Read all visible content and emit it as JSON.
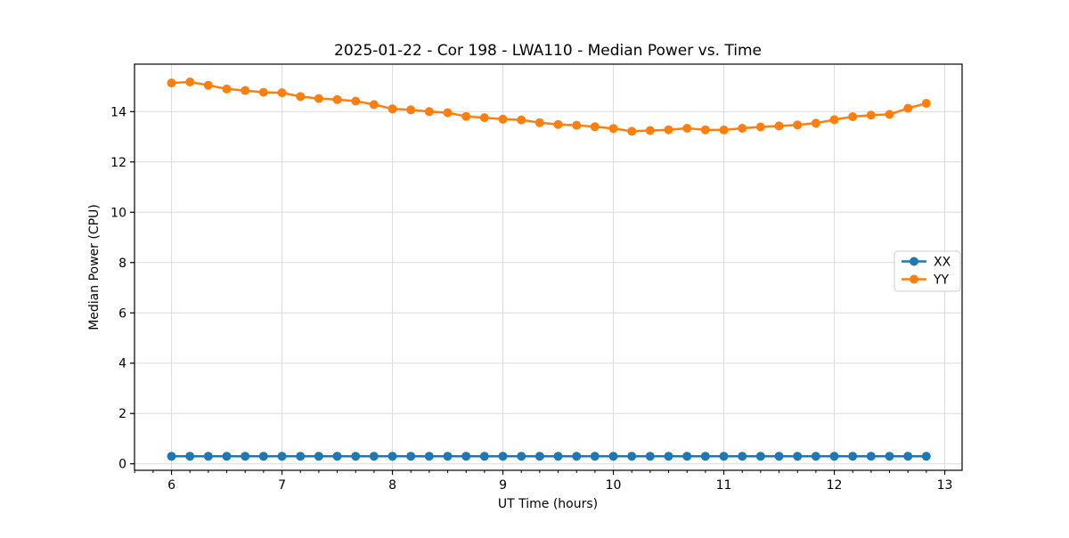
{
  "figure": {
    "background": "#ffffff"
  },
  "chart_data": {
    "type": "line",
    "title": "2025-01-22 - Cor 198 - LWA110 - Median Power vs. Time",
    "xlabel": "UT Time (hours)",
    "ylabel": "Median Power (CPU)",
    "x": [
      6.0,
      6.167,
      6.333,
      6.5,
      6.667,
      6.833,
      7.0,
      7.167,
      7.333,
      7.5,
      7.667,
      7.833,
      8.0,
      8.167,
      8.333,
      8.5,
      8.667,
      8.833,
      9.0,
      9.167,
      9.333,
      9.5,
      9.667,
      9.833,
      10.0,
      10.167,
      10.333,
      10.5,
      10.667,
      10.833,
      11.0,
      11.167,
      11.333,
      11.5,
      11.667,
      11.833,
      12.0,
      12.167,
      12.333,
      12.5,
      12.667,
      12.833
    ],
    "series": [
      {
        "name": "XX",
        "color": "#1f77b4",
        "values": [
          0.3,
          0.3,
          0.3,
          0.3,
          0.3,
          0.3,
          0.3,
          0.3,
          0.3,
          0.3,
          0.3,
          0.3,
          0.3,
          0.3,
          0.3,
          0.3,
          0.3,
          0.3,
          0.3,
          0.3,
          0.3,
          0.3,
          0.3,
          0.3,
          0.3,
          0.3,
          0.3,
          0.3,
          0.3,
          0.3,
          0.3,
          0.3,
          0.3,
          0.3,
          0.3,
          0.3,
          0.3,
          0.3,
          0.3,
          0.3,
          0.3,
          0.3
        ]
      },
      {
        "name": "YY",
        "color": "#ff7f0e",
        "values": [
          15.14,
          15.18,
          15.05,
          14.9,
          14.84,
          14.77,
          14.75,
          14.6,
          14.52,
          14.48,
          14.42,
          14.28,
          14.11,
          14.07,
          14.0,
          13.96,
          13.81,
          13.76,
          13.7,
          13.67,
          13.56,
          13.49,
          13.46,
          13.4,
          13.33,
          13.22,
          13.25,
          13.28,
          13.34,
          13.28,
          13.27,
          13.34,
          13.39,
          13.43,
          13.47,
          13.54,
          13.68,
          13.8,
          13.86,
          13.89,
          14.13,
          14.33
        ]
      }
    ],
    "xlim": [
      5.665,
      13.157
    ],
    "ylim": [
      -0.258,
      15.888
    ],
    "xticks": [
      6,
      7,
      8,
      9,
      10,
      11,
      12,
      13
    ],
    "xtick_labels": [
      "6",
      "7",
      "8",
      "9",
      "10",
      "11",
      "12",
      "13"
    ],
    "x_minor_step_hours": 0.1667,
    "yticks": [
      0,
      2,
      4,
      6,
      8,
      10,
      12,
      14
    ],
    "ytick_labels": [
      "0",
      "2",
      "4",
      "6",
      "8",
      "10",
      "12",
      "14"
    ],
    "grid": true,
    "legend": {
      "position": "center-right",
      "entries": [
        "XX",
        "YY"
      ]
    },
    "marker": "circle"
  },
  "colors": {
    "grid": "#dcdcdc",
    "spine": "#000000",
    "tick": "#000000",
    "legend_border": "#cccccc",
    "legend_background": "#ffffff",
    "series_xx": "#1f77b4",
    "series_yy": "#ff7f0e"
  }
}
